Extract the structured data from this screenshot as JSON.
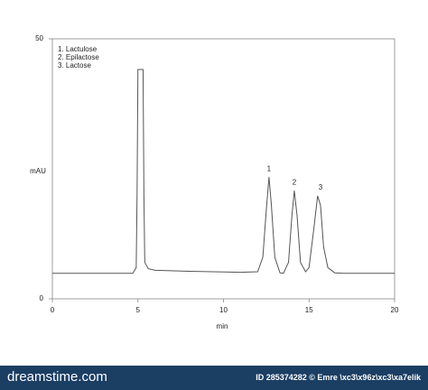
{
  "chart_data": {
    "type": "line",
    "xlabel": "min",
    "ylabel": "mAU",
    "legend_lines": [
      "1. Lactulose",
      "2. Epilactose",
      "3. Lactose"
    ],
    "annotations": [
      {
        "text": "1",
        "x": 12.66,
        "y": 23.4
      },
      {
        "text": "2",
        "x": 14.14,
        "y": 20.8
      },
      {
        "text": "3",
        "x": 15.67,
        "y": 19.8
      }
    ],
    "xlim": [
      0,
      20
    ],
    "xticks": [
      0,
      5,
      10,
      15,
      20
    ],
    "ylim": [
      0,
      50
    ],
    "yticks": [
      0,
      50
    ],
    "series": [
      {
        "color": "#555555",
        "x": [
          0,
          4.7,
          4.9,
          4.95,
          5.0,
          5.3,
          5.35,
          5.4,
          5.6,
          6,
          8,
          11,
          12.0,
          12.3,
          12.5,
          12.66,
          12.8,
          13.0,
          13.3,
          13.5,
          13.8,
          14.0,
          14.14,
          14.3,
          14.5,
          14.8,
          15.0,
          15.3,
          15.5,
          15.67,
          15.85,
          16.1,
          16.5,
          17,
          20
        ],
        "values": [
          4.9,
          4.9,
          6,
          20,
          44.1,
          44.1,
          20,
          7,
          5.8,
          5.5,
          5.3,
          5.1,
          5.2,
          8,
          17,
          23.4,
          18,
          8,
          5,
          4.9,
          7,
          16,
          20.8,
          16,
          7,
          5.2,
          6,
          14,
          19.8,
          18,
          10,
          6,
          5,
          4.9,
          4.9
        ]
      }
    ]
  },
  "footer": {
    "logo": "dreamstime.com",
    "credit": "ID 285374282 © Emre \\xc3\\x96z\\xc3\\xa7elik"
  }
}
